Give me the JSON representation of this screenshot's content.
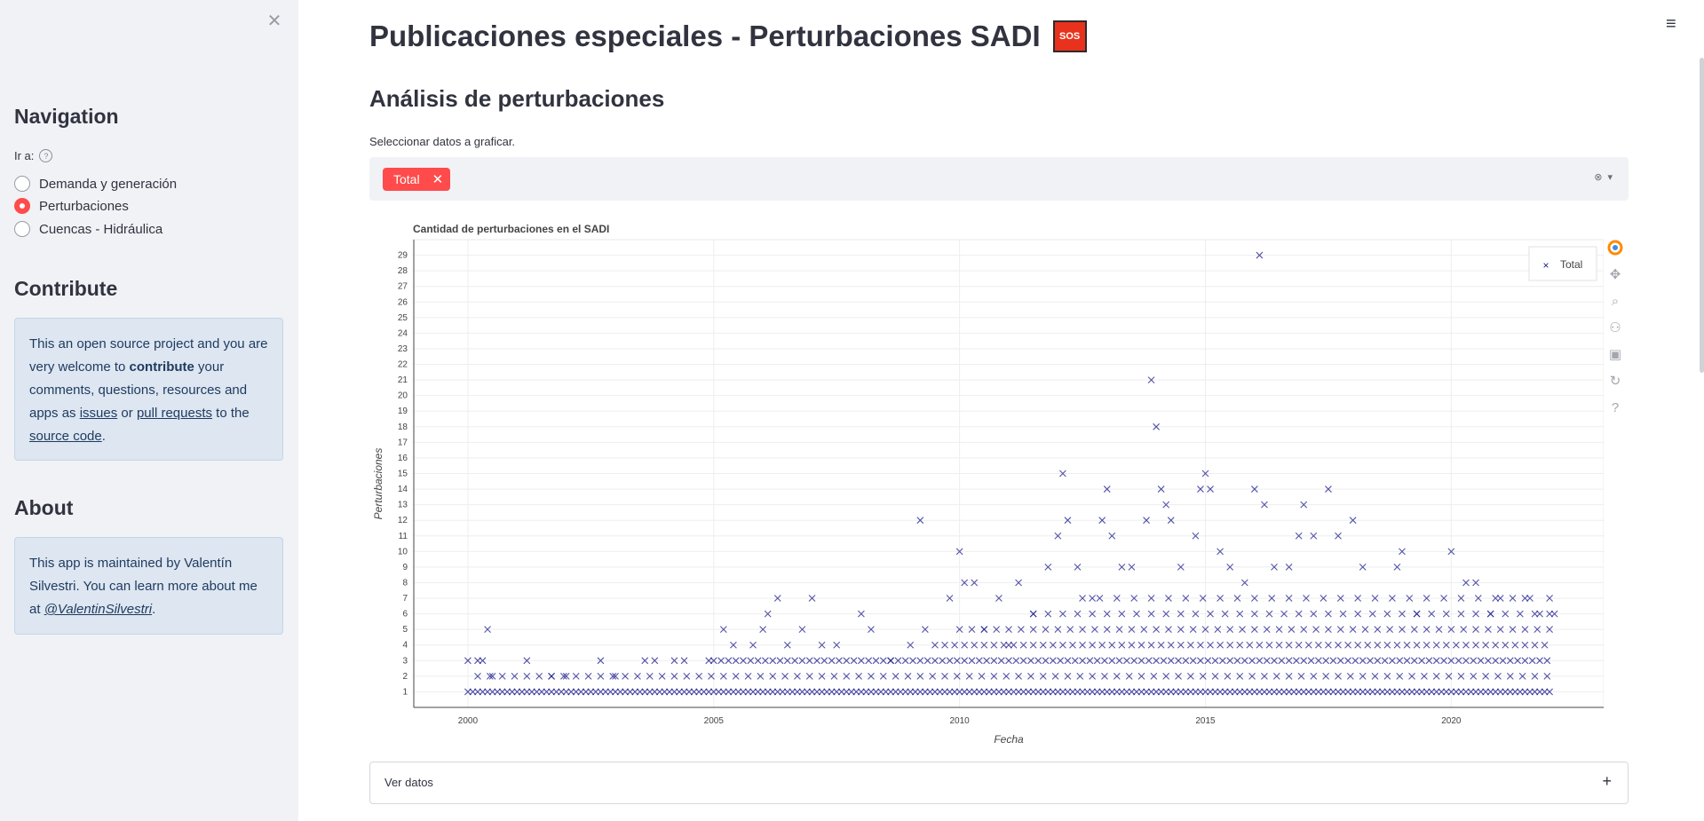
{
  "sidebar": {
    "close_icon": "close-icon",
    "nav_heading": "Navigation",
    "goto_label": "Ir a:",
    "help_symbol": "?",
    "radio_options": [
      "Demanda y generación",
      "Perturbaciones",
      "Cuencas - Hidráulica"
    ],
    "selected_index": 1,
    "contribute_heading": "Contribute",
    "contribute": {
      "t1": "This an open source project and you are very welcome to ",
      "bold": "contribute",
      "t2": " your comments, questions, resources and apps as ",
      "link_issues": "issues",
      "t3": " or ",
      "link_pr": "pull requests",
      "t4": " to the ",
      "link_source": "source code",
      "t5": "."
    },
    "about_heading": "About",
    "about": {
      "t1": "This app is maintained by Valentín Silvestri. You can learn more about me at ",
      "link": "@ValentinSilvestri",
      "t2": "."
    }
  },
  "main": {
    "title": "Publicaciones especiales - Perturbaciones SADI",
    "sos_label": "SOS",
    "subtitle": "Análisis de perturbaciones",
    "select_label": "Seleccionar datos a graficar.",
    "tag_label": "Total",
    "tag_remove": "✕",
    "clear_symbol": "⊗",
    "dropdown_symbol": "▾",
    "expander_label": "Ver datos",
    "expander_symbol": "+",
    "menu_symbol": "≡"
  },
  "colors": {
    "accent": "#ff4b4b",
    "marker": "#1a1a8c",
    "sos": "#e8321d"
  },
  "toolbar_icons": [
    "plotly-logo-icon",
    "pan-icon",
    "zoom-icon",
    "compare-icon",
    "save-icon",
    "reset-icon",
    "help-icon"
  ],
  "chart_data": {
    "type": "scatter",
    "title": "Cantidad de perturbaciones en el SADI",
    "xlabel": "Fecha",
    "ylabel": "Perturbaciones",
    "xlim": [
      1998.9,
      2023.1
    ],
    "ylim": [
      0,
      30
    ],
    "x_ticks": [
      2000,
      2005,
      2010,
      2015,
      2020
    ],
    "y_ticks": [
      1,
      2,
      3,
      4,
      5,
      6,
      7,
      8,
      9,
      10,
      11,
      12,
      13,
      14,
      15,
      16,
      17,
      18,
      19,
      20,
      21,
      22,
      23,
      24,
      25,
      26,
      27,
      28,
      29
    ],
    "legend": {
      "position": "top-right",
      "entries": [
        "Total"
      ]
    },
    "grid": true,
    "series": [
      {
        "name": "Total",
        "marker": "x",
        "points": [
          [
            2000.0,
            3
          ],
          [
            2000.2,
            3
          ],
          [
            2000.3,
            3
          ],
          [
            2000.4,
            5
          ],
          [
            2000.5,
            2
          ],
          [
            2001.2,
            3
          ],
          [
            2001.7,
            2
          ],
          [
            2002.0,
            2
          ],
          [
            2002.7,
            3
          ],
          [
            2003.0,
            2
          ],
          [
            2003.6,
            3
          ],
          [
            2003.8,
            3
          ],
          [
            2004.2,
            3
          ],
          [
            2004.4,
            3
          ],
          [
            2004.9,
            3
          ],
          [
            2005.2,
            5
          ],
          [
            2005.4,
            4
          ],
          [
            2005.8,
            4
          ],
          [
            2006.0,
            5
          ],
          [
            2006.1,
            6
          ],
          [
            2006.3,
            7
          ],
          [
            2006.5,
            4
          ],
          [
            2006.8,
            5
          ],
          [
            2007.0,
            7
          ],
          [
            2007.2,
            4
          ],
          [
            2007.5,
            4
          ],
          [
            2008.0,
            6
          ],
          [
            2008.2,
            5
          ],
          [
            2008.6,
            3
          ],
          [
            2009.0,
            4
          ],
          [
            2009.2,
            12
          ],
          [
            2009.3,
            5
          ],
          [
            2009.8,
            7
          ],
          [
            2010.0,
            10
          ],
          [
            2010.1,
            8
          ],
          [
            2010.3,
            8
          ],
          [
            2010.5,
            5
          ],
          [
            2010.8,
            7
          ],
          [
            2011.0,
            4
          ],
          [
            2011.2,
            8
          ],
          [
            2011.5,
            6
          ],
          [
            2011.8,
            9
          ],
          [
            2012.0,
            11
          ],
          [
            2012.1,
            15
          ],
          [
            2012.2,
            12
          ],
          [
            2012.4,
            9
          ],
          [
            2012.7,
            7
          ],
          [
            2012.9,
            12
          ],
          [
            2013.0,
            14
          ],
          [
            2013.1,
            11
          ],
          [
            2013.3,
            9
          ],
          [
            2013.5,
            9
          ],
          [
            2013.8,
            12
          ],
          [
            2013.9,
            21
          ],
          [
            2014.0,
            18
          ],
          [
            2014.1,
            14
          ],
          [
            2014.2,
            13
          ],
          [
            2014.3,
            12
          ],
          [
            2014.5,
            9
          ],
          [
            2014.8,
            11
          ],
          [
            2014.9,
            14
          ],
          [
            2015.0,
            15
          ],
          [
            2015.1,
            14
          ],
          [
            2015.3,
            10
          ],
          [
            2015.5,
            9
          ],
          [
            2015.8,
            8
          ],
          [
            2016.0,
            14
          ],
          [
            2016.1,
            29
          ],
          [
            2016.2,
            13
          ],
          [
            2016.4,
            9
          ],
          [
            2016.7,
            9
          ],
          [
            2016.9,
            11
          ],
          [
            2017.0,
            13
          ],
          [
            2017.2,
            11
          ],
          [
            2017.5,
            14
          ],
          [
            2017.7,
            11
          ],
          [
            2018.0,
            12
          ],
          [
            2018.2,
            9
          ],
          [
            2018.9,
            9
          ],
          [
            2019.0,
            10
          ],
          [
            2019.3,
            6
          ],
          [
            2020.0,
            10
          ],
          [
            2020.3,
            8
          ],
          [
            2020.5,
            8
          ],
          [
            2020.8,
            6
          ],
          [
            2021.0,
            7
          ],
          [
            2021.5,
            7
          ],
          [
            2021.8,
            6
          ],
          [
            2022.0,
            7
          ],
          [
            2022.1,
            6
          ]
        ]
      }
    ],
    "dense_rows": [
      {
        "y": 1,
        "x_from": 2000.0,
        "x_to": 2022.0,
        "step": 0.1
      },
      {
        "y": 2,
        "x_from": 2000.2,
        "x_to": 2022.0,
        "step": 0.25
      },
      {
        "y": 3,
        "x_from": 2005.0,
        "x_to": 2022.0,
        "step": 0.15
      },
      {
        "y": 4,
        "x_from": 2009.5,
        "x_to": 2022.0,
        "step": 0.2
      },
      {
        "y": 5,
        "x_from": 2010.0,
        "x_to": 2022.0,
        "step": 0.25
      },
      {
        "y": 6,
        "x_from": 2011.5,
        "x_to": 2022.0,
        "step": 0.3
      },
      {
        "y": 7,
        "x_from": 2012.5,
        "x_to": 2021.6,
        "step": 0.35
      }
    ]
  }
}
